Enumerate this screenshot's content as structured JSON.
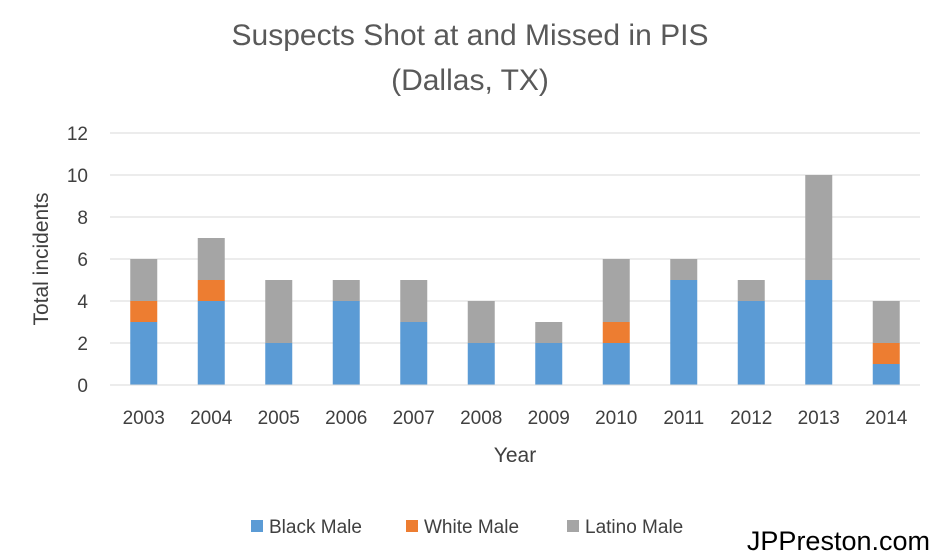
{
  "chart_data": {
    "type": "bar",
    "stacked": true,
    "title_lines": [
      "Suspects Shot at and Missed in PIS",
      "(Dallas, TX)"
    ],
    "xlabel": "Year",
    "ylabel": "Total incidents",
    "ylim": [
      0,
      12
    ],
    "yticks": [
      0,
      2,
      4,
      6,
      8,
      10,
      12
    ],
    "grid": true,
    "legend_position": "bottom",
    "categories": [
      "2003",
      "2004",
      "2005",
      "2006",
      "2007",
      "2008",
      "2009",
      "2010",
      "2011",
      "2012",
      "2013",
      "2014"
    ],
    "series": [
      {
        "name": "Black Male",
        "color": "#5B9BD5",
        "values": [
          3,
          4,
          2,
          4,
          3,
          2,
          2,
          2,
          5,
          4,
          5,
          1
        ]
      },
      {
        "name": "White Male",
        "color": "#ED7D31",
        "values": [
          1,
          1,
          0,
          0,
          0,
          0,
          0,
          1,
          0,
          0,
          0,
          1
        ]
      },
      {
        "name": "Latino Male",
        "color": "#A5A5A5",
        "values": [
          2,
          2,
          3,
          1,
          2,
          2,
          1,
          3,
          1,
          1,
          5,
          2
        ]
      }
    ]
  },
  "watermark": "JPPreston.com"
}
